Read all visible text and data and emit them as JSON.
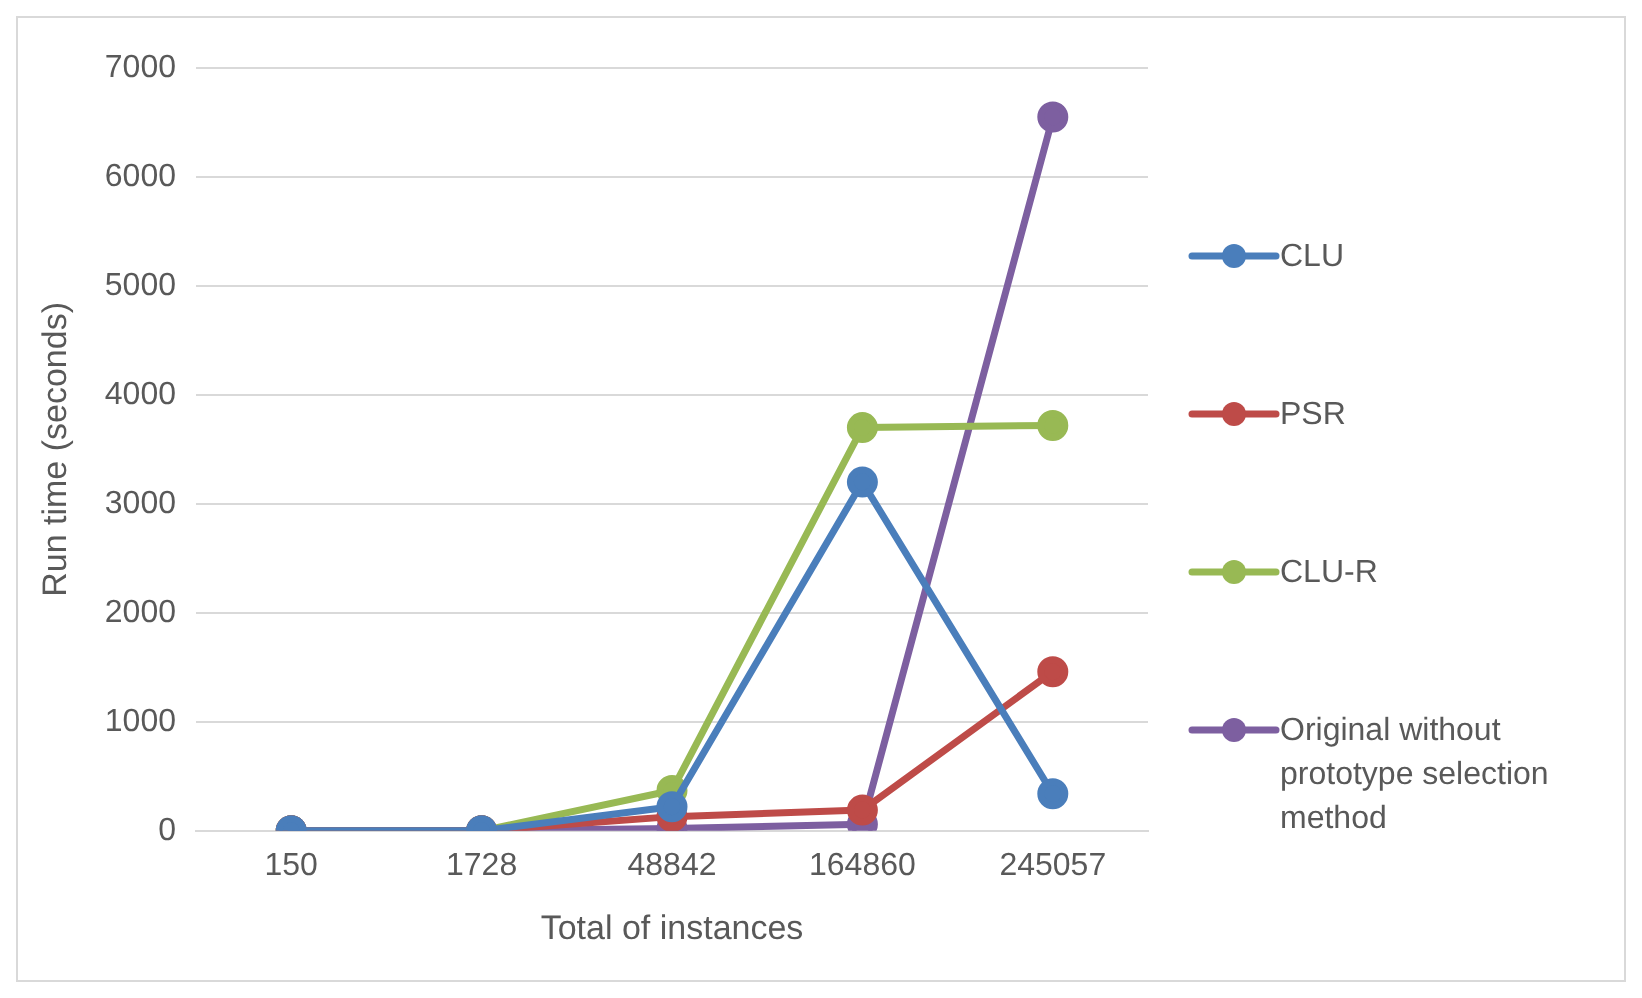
{
  "chart_data": {
    "type": "line",
    "xlabel": "Total of instances",
    "ylabel": "Run time (seconds)",
    "categories": [
      "150",
      "1728",
      "48842",
      "164860",
      "245057"
    ],
    "series": [
      {
        "name": "CLU",
        "color": "#4a7ebb",
        "values": [
          0,
          0,
          220,
          3200,
          340
        ]
      },
      {
        "name": "PSR",
        "color": "#be4b48",
        "values": [
          0,
          0,
          130,
          190,
          1460
        ]
      },
      {
        "name": "CLU-R",
        "color": "#98b954",
        "values": [
          0,
          0,
          370,
          3700,
          3720
        ]
      },
      {
        "name": "Original without prototype selection method",
        "color": "#7d5fa0",
        "values": [
          0,
          0,
          20,
          60,
          6550
        ]
      }
    ],
    "ylim": [
      0,
      7000
    ],
    "yticks": [
      0,
      1000,
      2000,
      3000,
      4000,
      5000,
      6000,
      7000
    ],
    "grid": "y",
    "legend": "right",
    "marker": "circle",
    "line_style": "solid"
  }
}
